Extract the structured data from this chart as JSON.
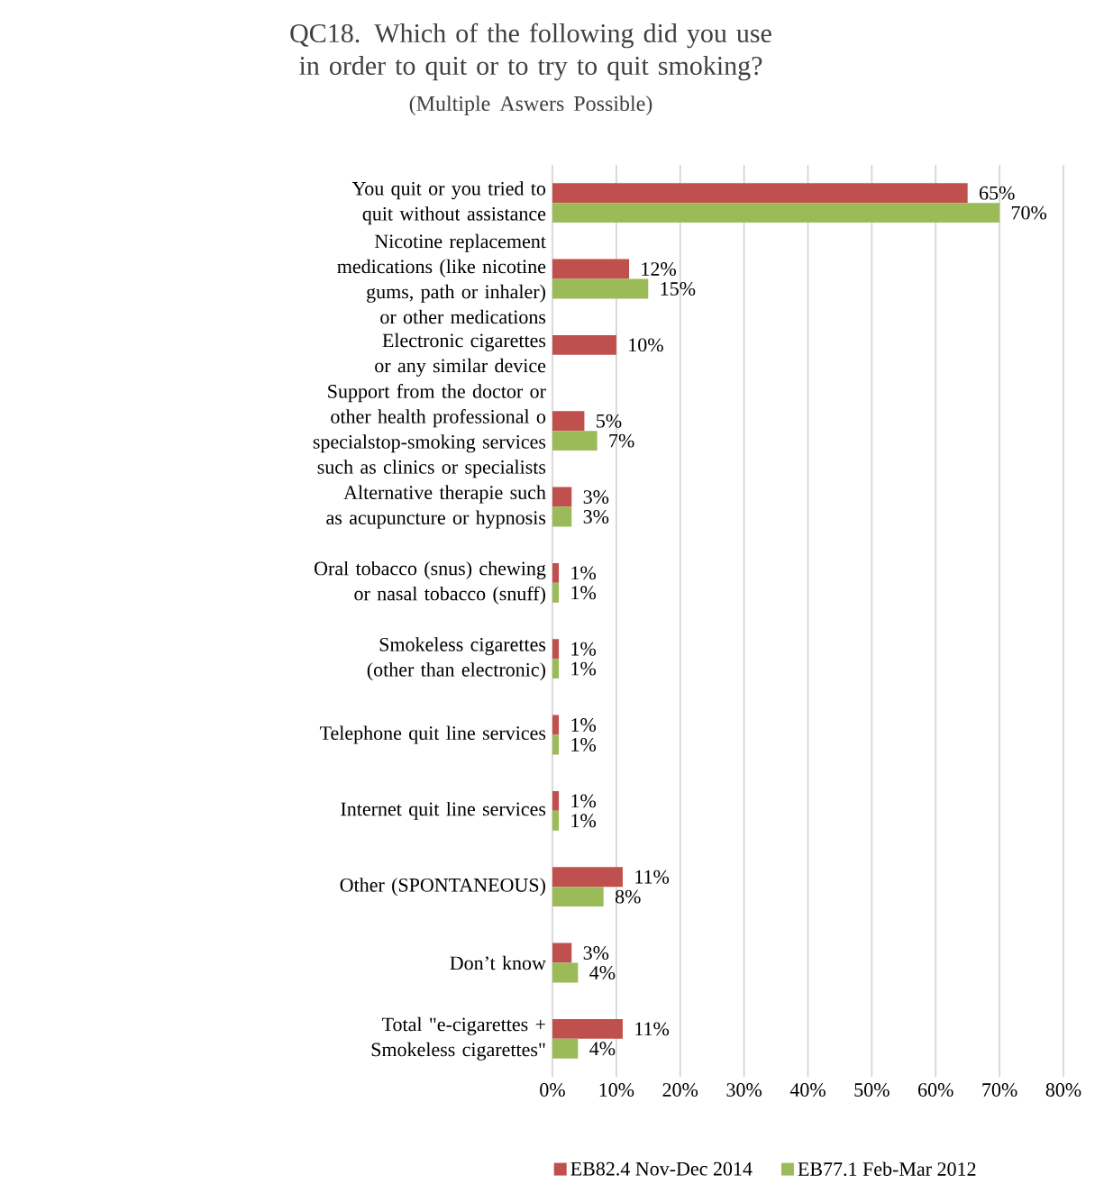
{
  "chart_data": {
    "type": "bar",
    "orientation": "horizontal",
    "title": "QC18. Which of the following did you use in order to quit or to try to quit smoking?",
    "subtitle": "(Multiple Aswers Possible)",
    "categories": [
      "You quit or you tried to quit without assistance",
      "Nicotine replacement medications (like nicotine gums, path or inhaler) or other medications",
      "Electronic cigarettes or any similar device",
      "Support from the doctor or other health professional o specialstop-smoking services such as clinics or specialists",
      "Alternative therapie such as acupuncture or hypnosis",
      "Oral tobacco (snus) chewing or nasal tobacco (snuff)",
      "Smokeless cigarettes (other than electronic)",
      "Telephone quit line services",
      "Internet quit line services",
      "Other (SPONTANEOUS)",
      "Don’t know",
      "Total \"e-cigarettes + Smokeless cigarettes\""
    ],
    "series": [
      {
        "name": "EB82.4 Nov-Dec 2014",
        "color": "#c0504d",
        "values": [
          65,
          12,
          10,
          5,
          3,
          1,
          1,
          1,
          1,
          11,
          3,
          11
        ],
        "value_labels": [
          "65%",
          "12%",
          "10%",
          "5%",
          "3%",
          "1%",
          "1%",
          "1%",
          "1%",
          "11%",
          "3%",
          "11%"
        ]
      },
      {
        "name": "EB77.1 Feb-Mar 2012",
        "color": "#9bbb59",
        "values": [
          70,
          15,
          null,
          7,
          3,
          1,
          1,
          1,
          1,
          8,
          4,
          4
        ],
        "value_labels": [
          "70%",
          "15%",
          null,
          "7%",
          "3%",
          "1%",
          "1%",
          "1%",
          "1%",
          "8%",
          "4%",
          "4%"
        ]
      }
    ],
    "xlim": [
      0,
      80
    ],
    "xticks": [
      {
        "value": 0,
        "label": "0%"
      },
      {
        "value": 10,
        "label": "10%"
      },
      {
        "value": 20,
        "label": "20%"
      },
      {
        "value": 30,
        "label": "30%"
      },
      {
        "value": 40,
        "label": "40%"
      },
      {
        "value": 50,
        "label": "50%"
      },
      {
        "value": 60,
        "label": "60%"
      },
      {
        "value": 70,
        "label": "70%"
      },
      {
        "value": 80,
        "label": "80%"
      }
    ],
    "grid": "x",
    "legend": "bottom"
  }
}
